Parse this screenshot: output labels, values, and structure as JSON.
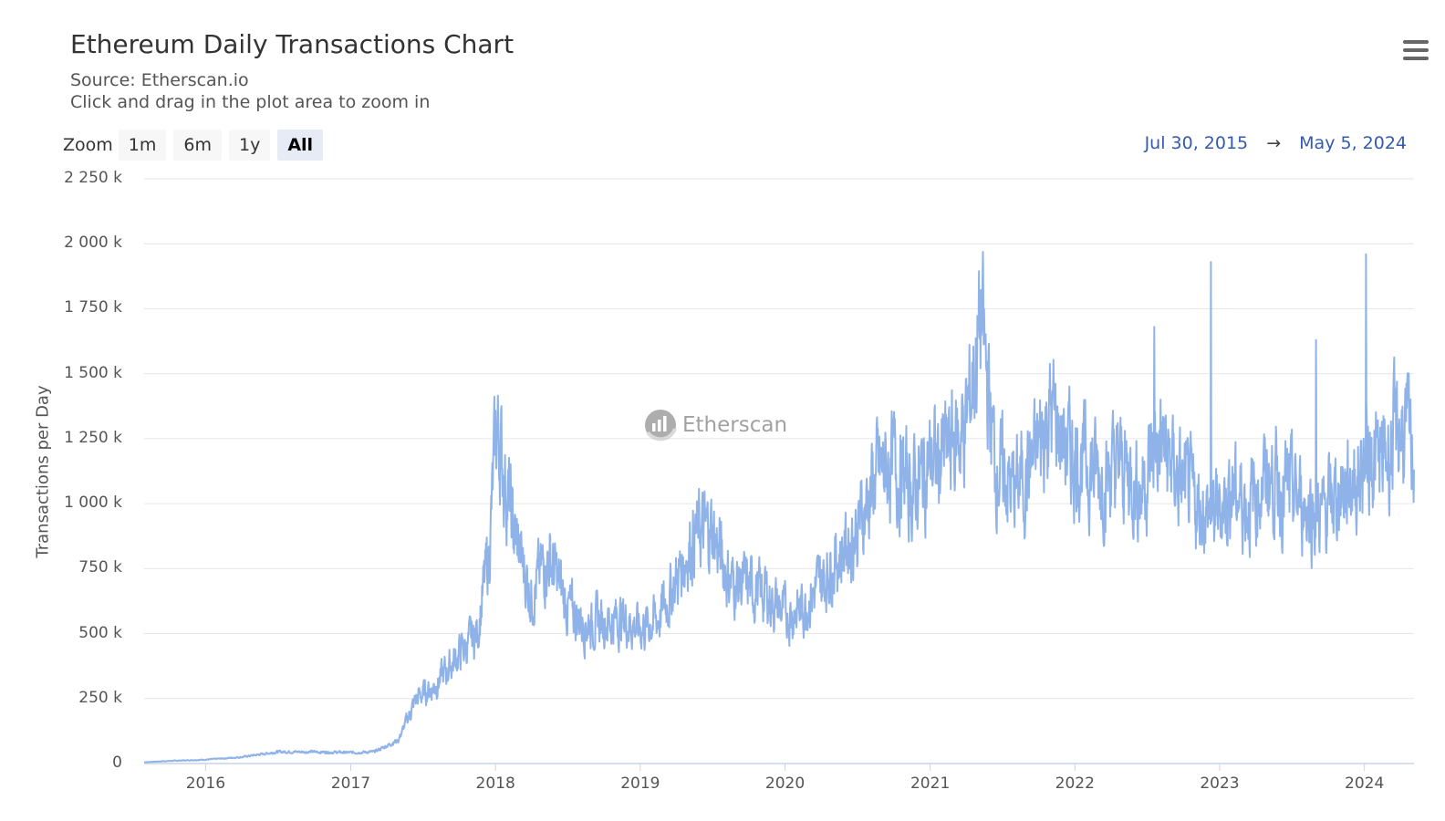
{
  "header": {
    "title": "Ethereum Daily Transactions Chart",
    "source": "Source: Etherscan.io",
    "hint": "Click and drag in the plot area to zoom in"
  },
  "menu_icon": "hamburger-menu-icon",
  "zoom": {
    "label": "Zoom",
    "buttons": [
      "1m",
      "6m",
      "1y",
      "All"
    ],
    "active": "All"
  },
  "range": {
    "from": "Jul 30, 2015",
    "to": "May 5, 2024",
    "arrow": "→"
  },
  "watermark": {
    "text": "Etherscan",
    "icon": "etherscan-logo-icon"
  },
  "colors": {
    "series": "#8fb3e8",
    "range_text": "#335cad",
    "active_zoom_bg": "#e6ebf5"
  },
  "chart_data": {
    "type": "line",
    "title": "Ethereum Daily Transactions Chart",
    "ylabel": "Transactions per Day",
    "xlabel": "",
    "ylim": [
      0,
      2250000
    ],
    "yticks": [
      "0",
      "250 k",
      "500 k",
      "750 k",
      "1 000 k",
      "1 250 k",
      "1 500 k",
      "1 750 k",
      "2 000 k",
      "2 250 k"
    ],
    "xticks": [
      "2016",
      "2017",
      "2018",
      "2019",
      "2020",
      "2021",
      "2022",
      "2023",
      "2024"
    ],
    "xlim": [
      "2015-07-30",
      "2024-05-05"
    ],
    "grid": true,
    "legend": "none",
    "series": [
      {
        "x": [
          "2015-07-30",
          "2015-10-01",
          "2016-01-01",
          "2016-04-01",
          "2016-07-01",
          "2016-10-01",
          "2017-01-01",
          "2017-03-01",
          "2017-05-01",
          "2017-06-15",
          "2017-08-01",
          "2017-10-01",
          "2017-11-15",
          "2017-12-15",
          "2018-01-04",
          "2018-02-15",
          "2018-04-01",
          "2018-05-15",
          "2018-07-01",
          "2018-08-15",
          "2018-10-01",
          "2018-11-15",
          "2019-01-01",
          "2019-02-15",
          "2019-04-01",
          "2019-05-15",
          "2019-07-01",
          "2019-08-15",
          "2019-10-01",
          "2019-11-15",
          "2020-01-01",
          "2020-02-15",
          "2020-04-01",
          "2020-05-15",
          "2020-07-01",
          "2020-08-15",
          "2020-10-01",
          "2020-11-15",
          "2021-01-01",
          "2021-02-15",
          "2021-04-01",
          "2021-05-10",
          "2021-06-15",
          "2021-08-01",
          "2021-09-15",
          "2021-11-01",
          "2021-12-15",
          "2022-02-01",
          "2022-03-15",
          "2022-05-01",
          "2022-06-15",
          "2022-08-01",
          "2022-09-15",
          "2022-11-01",
          "2022-12-15",
          "2023-02-01",
          "2023-03-15",
          "2023-05-01",
          "2023-06-15",
          "2023-08-01",
          "2023-09-15",
          "2023-11-01",
          "2023-12-15",
          "2024-01-10",
          "2024-02-15",
          "2024-04-01",
          "2024-05-05"
        ],
        "y": [
          5000,
          10000,
          15000,
          25000,
          45000,
          45000,
          42000,
          45000,
          90000,
          250000,
          300000,
          420000,
          500000,
          800000,
          1300000,
          900000,
          650000,
          800000,
          600000,
          540000,
          550000,
          560000,
          520000,
          560000,
          700000,
          880000,
          900000,
          700000,
          680000,
          650000,
          570000,
          600000,
          700000,
          800000,
          900000,
          1100000,
          1150000,
          1050000,
          1150000,
          1200000,
          1300000,
          1700000,
          1150000,
          1050000,
          1150000,
          1350000,
          1200000,
          1150000,
          1100000,
          1150000,
          1050000,
          1250000,
          1100000,
          1000000,
          950000,
          1050000,
          1000000,
          1100000,
          1050000,
          1000000,
          950000,
          1050000,
          1100000,
          1200000,
          1150000,
          1300000,
          1200000
        ]
      }
    ],
    "spikes": [
      {
        "x": "2022-07-20",
        "y": 1680000
      },
      {
        "x": "2022-12-10",
        "y": 1930000
      },
      {
        "x": "2023-09-01",
        "y": 1630000
      },
      {
        "x": "2024-01-05",
        "y": 1960000
      }
    ]
  }
}
